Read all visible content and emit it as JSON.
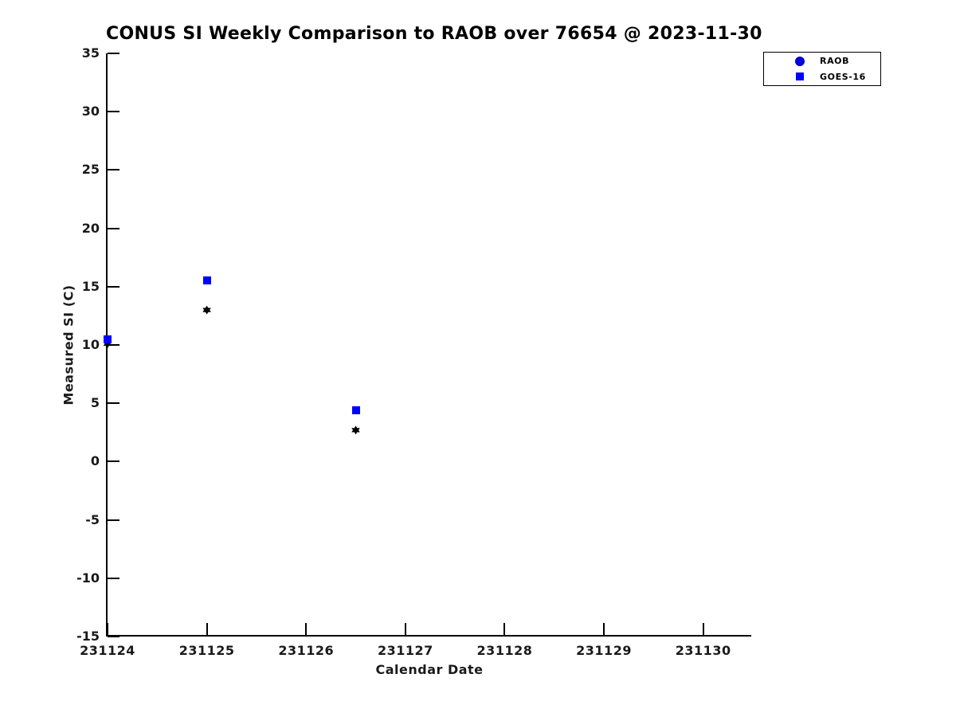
{
  "figure": {
    "title": "CONUS SI Weekly Comparison to RAOB over 76654 @ 2023-11-30"
  },
  "chart_data": {
    "type": "scatter",
    "title": "CONUS SI Weekly Comparison to RAOB over 76654 @ 2023-11-30",
    "xlabel": "Calendar Date",
    "ylabel": "Measured SI (C)",
    "xlim": [
      231124,
      231130.5
    ],
    "ylim": [
      -15,
      35
    ],
    "x_ticks": [
      231124,
      231125,
      231126,
      231127,
      231128,
      231129,
      231130
    ],
    "y_ticks": [
      35,
      30,
      25,
      20,
      15,
      10,
      5,
      0,
      -5,
      -10,
      -15
    ],
    "grid": false,
    "tick_direction": "in",
    "legend_position": "outside-top-right",
    "legend": {
      "items": [
        {
          "label": "RAOB",
          "marker": "circle",
          "color": "#0000ff"
        },
        {
          "label": "GOES-16",
          "marker": "square",
          "color": "#0000ff"
        }
      ]
    },
    "series": [
      {
        "name": "RAOB",
        "marker": "hexagram",
        "color": "#000000",
        "points": [
          {
            "x": 231124,
            "y": 10.1
          },
          {
            "x": 231125,
            "y": 13.0
          },
          {
            "x": 231126.5,
            "y": 2.7
          }
        ]
      },
      {
        "name": "GOES-16",
        "marker": "square",
        "color": "#0000ff",
        "points": [
          {
            "x": 231124,
            "y": 10.5
          },
          {
            "x": 231125,
            "y": 15.5
          },
          {
            "x": 231126.5,
            "y": 4.4
          }
        ]
      }
    ]
  }
}
